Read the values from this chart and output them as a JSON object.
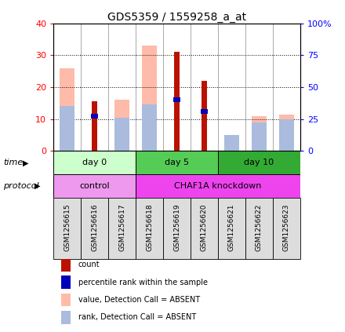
{
  "title": "GDS5359 / 1559258_a_at",
  "samples": [
    "GSM1256615",
    "GSM1256616",
    "GSM1256617",
    "GSM1256618",
    "GSM1256619",
    "GSM1256620",
    "GSM1256621",
    "GSM1256622",
    "GSM1256623"
  ],
  "count_values": [
    0,
    15.5,
    0,
    0,
    31,
    22,
    0,
    0,
    0
  ],
  "percentile_values": [
    0,
    11,
    0,
    0,
    16,
    12.5,
    0,
    0,
    0
  ],
  "absent_value_values": [
    26,
    0,
    16,
    33,
    0,
    0,
    4,
    11,
    11.5
  ],
  "absent_rank_values": [
    14,
    0,
    10.5,
    14.5,
    0,
    0,
    5,
    9,
    10
  ],
  "left_ylim": [
    0,
    40
  ],
  "right_ylim": [
    0,
    100
  ],
  "left_yticks": [
    0,
    10,
    20,
    30,
    40
  ],
  "right_yticks": [
    0,
    25,
    50,
    75,
    100
  ],
  "right_yticklabels": [
    "0",
    "25",
    "50",
    "75",
    "100%"
  ],
  "time_groups": [
    {
      "label": "day 0",
      "start": 0,
      "end": 3,
      "color": "#ccffcc"
    },
    {
      "label": "day 5",
      "start": 3,
      "end": 6,
      "color": "#55cc55"
    },
    {
      "label": "day 10",
      "start": 6,
      "end": 9,
      "color": "#33aa33"
    }
  ],
  "protocol_groups": [
    {
      "label": "control",
      "start": 0,
      "end": 3,
      "color": "#ee99ee"
    },
    {
      "label": "CHAF1A knockdown",
      "start": 3,
      "end": 9,
      "color": "#ee44ee"
    }
  ],
  "color_count": "#bb1100",
  "color_percentile": "#0000bb",
  "color_absent_value": "#ffbbaa",
  "color_absent_rank": "#aabbdd",
  "legend_items": [
    {
      "color": "#bb1100",
      "label": "count"
    },
    {
      "color": "#0000bb",
      "label": "percentile rank within the sample"
    },
    {
      "color": "#ffbbaa",
      "label": "value, Detection Call = ABSENT"
    },
    {
      "color": "#aabbdd",
      "label": "rank, Detection Call = ABSENT"
    }
  ]
}
